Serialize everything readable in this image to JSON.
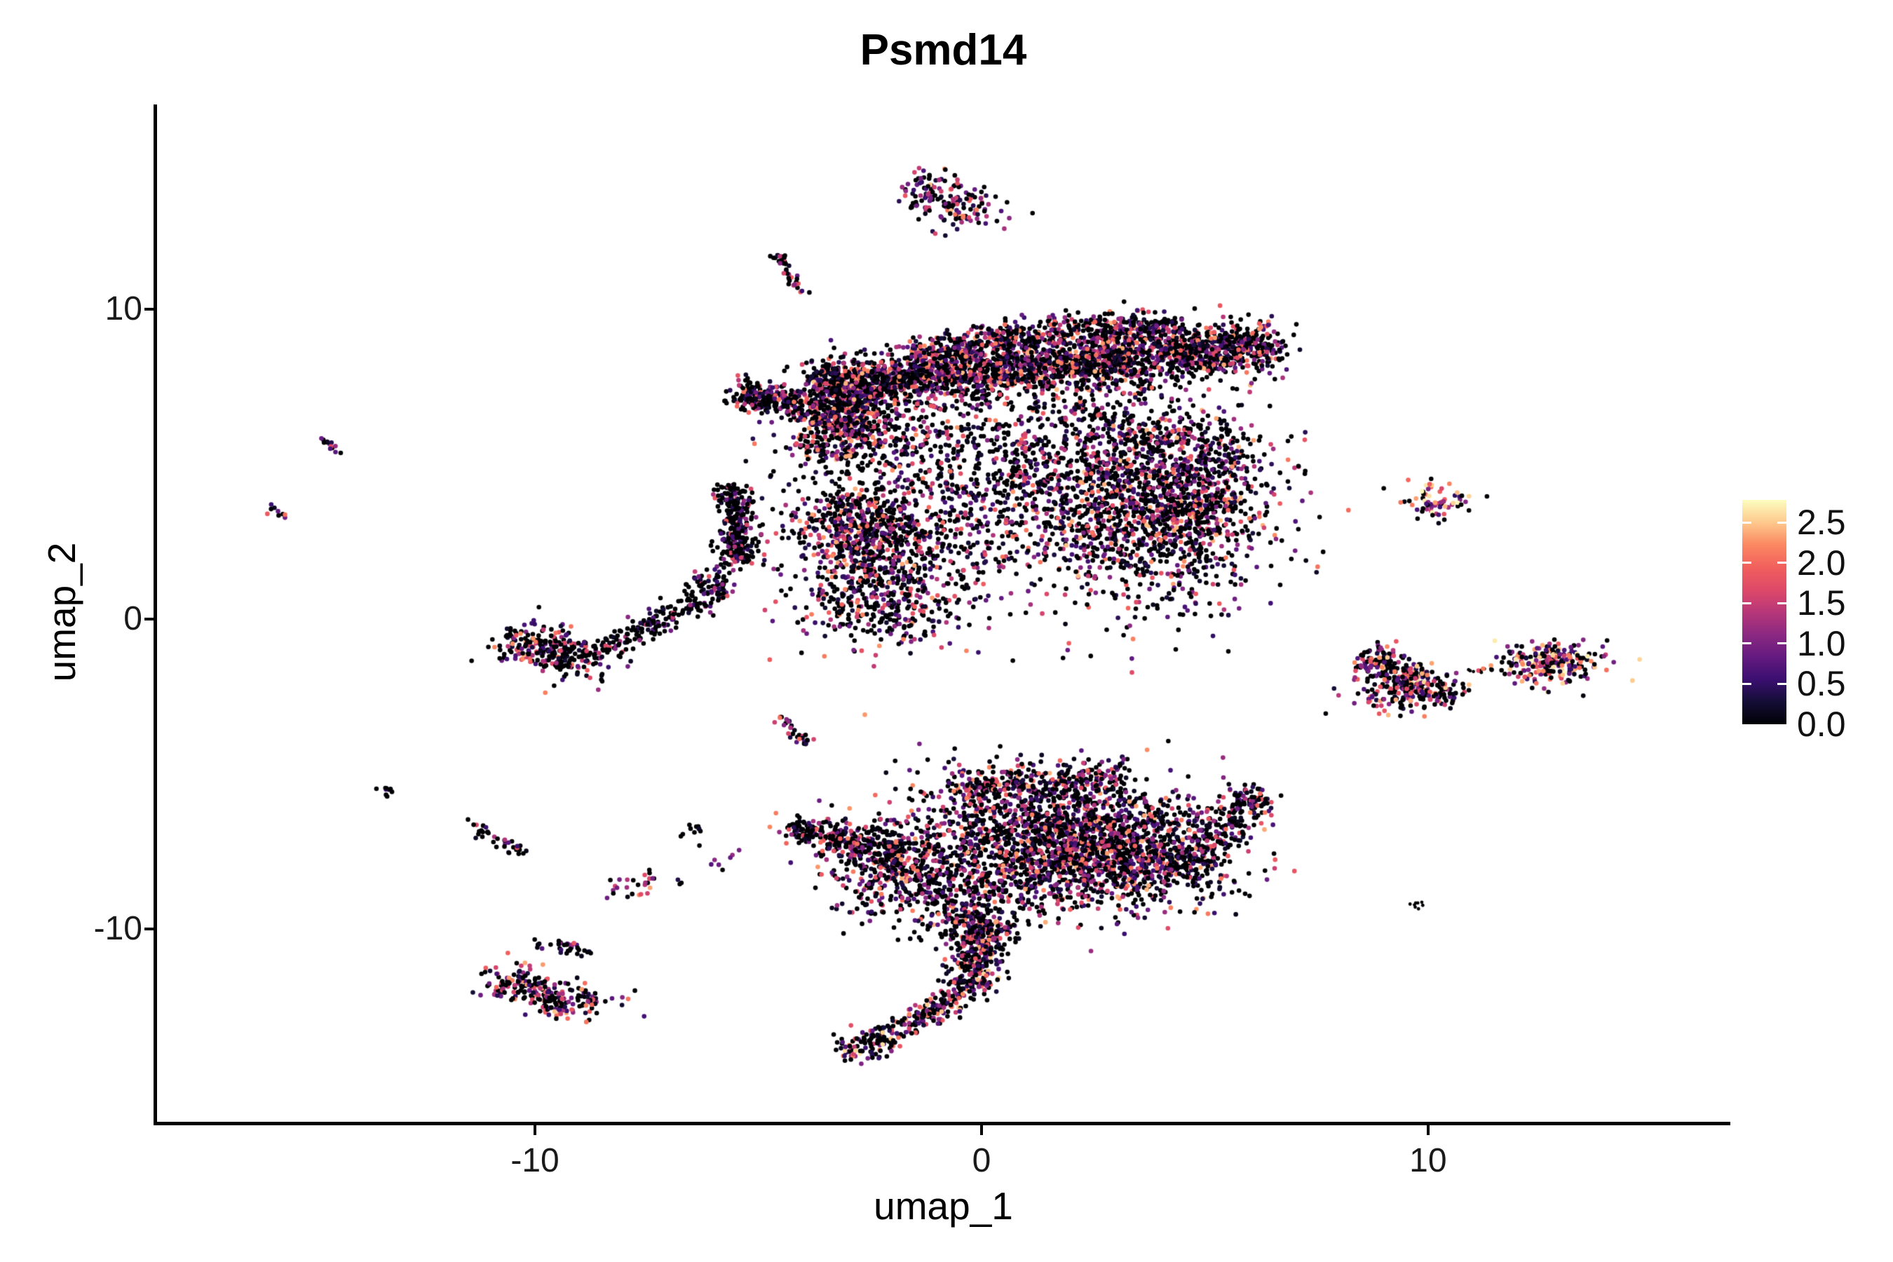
{
  "chart_data": {
    "type": "scatter",
    "title": "Psmd14",
    "xlabel": "umap_1",
    "ylabel": "umap_2",
    "xlim": [
      -18.48,
      16.77
    ],
    "ylim": [
      -16.27,
      16.61
    ],
    "x_ticks": [
      {
        "v": -10,
        "label": "-10"
      },
      {
        "v": 0,
        "label": "0"
      },
      {
        "v": 10,
        "label": "10"
      }
    ],
    "y_ticks": [
      {
        "v": 10,
        "label": "10"
      },
      {
        "v": 0,
        "label": "0"
      },
      {
        "v": -10,
        "label": "-10"
      }
    ],
    "grid": false,
    "legend_position": "right",
    "point_radius_px": 3.3,
    "color_scale": {
      "palette": "magma",
      "vmin": 0.0,
      "vmax": 2.78,
      "tick_values": [
        2.5,
        2.0,
        1.5,
        1.0,
        0.5,
        0.0
      ],
      "tick_labels": [
        "2.5",
        "2.0",
        "1.5",
        "1.0",
        "0.5",
        "0.0"
      ],
      "stops": [
        {
          "t": 0.0,
          "color": "#000004"
        },
        {
          "t": 0.1,
          "color": "#140e36"
        },
        {
          "t": 0.2,
          "color": "#3b0f70"
        },
        {
          "t": 0.3,
          "color": "#641a80"
        },
        {
          "t": 0.4,
          "color": "#8c2981"
        },
        {
          "t": 0.5,
          "color": "#b73779"
        },
        {
          "t": 0.6,
          "color": "#de4968"
        },
        {
          "t": 0.7,
          "color": "#f1605d"
        },
        {
          "t": 0.8,
          "color": "#fb8861"
        },
        {
          "t": 0.9,
          "color": "#fec98d"
        },
        {
          "t": 1.0,
          "color": "#fcfdbf"
        }
      ]
    },
    "e_default": {
      "p0": 0.42,
      "vmax": 2.35,
      "k": 1.7
    },
    "clusters": [
      {
        "name": "top-island-a",
        "shape": "gauss",
        "c": [
          -1.05,
          13.75
        ],
        "s": [
          0.45,
          0.38
        ],
        "n": 85,
        "e": {
          "p0": 0.36,
          "vmax": 2.5,
          "k": 1.3
        }
      },
      {
        "name": "top-island-b",
        "shape": "gauss",
        "c": [
          -0.3,
          13.3
        ],
        "s": [
          0.5,
          0.33
        ],
        "n": 75,
        "e": {
          "p0": 0.36,
          "vmax": 2.5,
          "k": 1.3
        }
      },
      {
        "name": "top-island-stray",
        "shape": "gauss",
        "c": [
          -0.7,
          12.6
        ],
        "s": [
          0.3,
          0.25
        ],
        "n": 6,
        "e": {
          "p0": 0.5,
          "vmax": 2.0,
          "k": 1.6
        }
      },
      {
        "name": "streak-topleft",
        "shape": "band",
        "p": [
          [
            -4.65,
            11.95
          ],
          [
            -4.0,
            10.45
          ]
        ],
        "w": 0.09,
        "n": 42,
        "e": {
          "p0": 0.5,
          "vmax": 2.2,
          "k": 1.5
        }
      },
      {
        "name": "band-main",
        "shape": "band",
        "p": [
          [
            -3.7,
            7.45
          ],
          [
            6.55,
            8.85
          ]
        ],
        "w": 0.42,
        "n": 2500,
        "e": {
          "p0": 0.4,
          "vmax": 2.45,
          "k": 1.55
        }
      },
      {
        "name": "band-upper",
        "shape": "band",
        "p": [
          [
            0.3,
            9.0
          ],
          [
            4.3,
            9.55
          ]
        ],
        "w": 0.3,
        "n": 430,
        "e": {
          "p0": 0.4,
          "vmax": 2.45,
          "k": 1.55
        }
      },
      {
        "name": "band-upper-left",
        "shape": "band",
        "p": [
          [
            -1.5,
            8.5
          ],
          [
            0.5,
            9.1
          ]
        ],
        "w": 0.25,
        "n": 200,
        "e": {
          "p0": 0.4,
          "vmax": 2.45,
          "k": 1.55
        }
      },
      {
        "name": "knot-left",
        "shape": "gauss",
        "c": [
          -3.25,
          6.55
        ],
        "s": [
          0.55,
          0.75
        ],
        "n": 650,
        "e": {
          "p0": 0.36,
          "vmax": 2.5,
          "k": 1.45
        }
      },
      {
        "name": "left-extension",
        "shape": "band",
        "p": [
          [
            -5.5,
            7.3
          ],
          [
            -4.2,
            6.9
          ]
        ],
        "w": 0.28,
        "n": 200,
        "e": {
          "p0": 0.45,
          "vmax": 2.3,
          "k": 1.6
        }
      },
      {
        "name": "sparse-mid-a",
        "shape": "gauss",
        "c": [
          -1.6,
          5.9
        ],
        "s": [
          1.5,
          0.95
        ],
        "n": 300,
        "e": {
          "p0": 0.46,
          "vmax": 2.3,
          "k": 1.7
        }
      },
      {
        "name": "sparse-mid-b",
        "shape": "gauss",
        "c": [
          1.3,
          4.9
        ],
        "s": [
          1.5,
          1.2
        ],
        "n": 380,
        "e": {
          "p0": 0.46,
          "vmax": 2.3,
          "k": 1.7
        }
      },
      {
        "name": "sparse-mid-c",
        "shape": "gauss",
        "c": [
          3.1,
          6.2
        ],
        "s": [
          1.2,
          0.95
        ],
        "n": 280,
        "e": {
          "p0": 0.46,
          "vmax": 2.3,
          "k": 1.7
        }
      },
      {
        "name": "sparse-mid-d",
        "shape": "gauss",
        "c": [
          -0.6,
          3.1
        ],
        "s": [
          1.3,
          1.0
        ],
        "n": 320,
        "e": {
          "p0": 0.46,
          "vmax": 2.3,
          "k": 1.7
        }
      },
      {
        "name": "right-lobe",
        "shape": "gauss",
        "c": [
          3.5,
          3.5
        ],
        "s": [
          1.5,
          1.55
        ],
        "n": 1250,
        "e": {
          "p0": 0.4,
          "vmax": 2.5,
          "k": 1.45
        }
      },
      {
        "name": "right-lobe-edge",
        "shape": "gauss",
        "c": [
          4.9,
          4.2
        ],
        "s": [
          0.75,
          1.3
        ],
        "n": 480,
        "e": {
          "p0": 0.4,
          "vmax": 2.5,
          "k": 1.45
        }
      },
      {
        "name": "bottom-knot",
        "shape": "gauss",
        "c": [
          -2.7,
          2.9
        ],
        "s": [
          0.8,
          0.75
        ],
        "n": 560,
        "e": {
          "p0": 0.42,
          "vmax": 2.4,
          "k": 1.5
        }
      },
      {
        "name": "below-knot",
        "shape": "gauss",
        "c": [
          -2.2,
          0.85
        ],
        "s": [
          1.05,
          0.85
        ],
        "n": 480,
        "e": {
          "p0": 0.42,
          "vmax": 2.4,
          "k": 1.5
        }
      },
      {
        "name": "vertical-arm",
        "shape": "band",
        "p": [
          [
            -5.5,
            4.3
          ],
          [
            -5.45,
            1.7
          ]
        ],
        "w": 0.22,
        "n": 300,
        "e": {
          "p0": 0.55,
          "vmax": 2.0,
          "k": 2.0
        }
      },
      {
        "name": "arm-elbow",
        "shape": "gauss",
        "c": [
          -6.0,
          1.0
        ],
        "s": [
          0.3,
          0.35
        ],
        "n": 80,
        "e": {
          "p0": 0.55,
          "vmax": 2.0,
          "k": 2.0
        }
      },
      {
        "name": "arm-trail",
        "shape": "band",
        "p": [
          [
            -6.3,
            0.6
          ],
          [
            -8.55,
            -1.05
          ]
        ],
        "w": 0.18,
        "n": 150,
        "e": {
          "p0": 0.6,
          "vmax": 1.8,
          "k": 2.0
        }
      },
      {
        "name": "left-cluster-a",
        "shape": "gauss",
        "c": [
          -9.95,
          -0.8
        ],
        "s": [
          0.5,
          0.33
        ],
        "n": 140,
        "e": {
          "p0": 0.48,
          "vmax": 2.4,
          "k": 1.5
        }
      },
      {
        "name": "left-cluster-b",
        "shape": "gauss",
        "c": [
          -9.25,
          -1.3
        ],
        "s": [
          0.55,
          0.33
        ],
        "n": 150,
        "e": {
          "p0": 0.48,
          "vmax": 2.4,
          "k": 1.5
        }
      },
      {
        "name": "islet-s1",
        "shape": "band",
        "p": [
          [
            -14.9,
            5.9
          ],
          [
            -14.4,
            5.3
          ]
        ],
        "w": 0.08,
        "n": 13,
        "e": {
          "p0": 0.35,
          "vmax": 2.2,
          "k": 1.2
        }
      },
      {
        "name": "islet-s2",
        "shape": "gauss",
        "c": [
          -15.8,
          3.45
        ],
        "s": [
          0.17,
          0.12
        ],
        "rot": -35,
        "n": 9,
        "e": {
          "p0": 0.4,
          "vmax": 2.2,
          "k": 1.2
        }
      },
      {
        "name": "islet-s3",
        "shape": "gauss",
        "c": [
          -13.3,
          -5.5
        ],
        "s": [
          0.13,
          0.13
        ],
        "n": 9,
        "e": {
          "p0": 0.85,
          "vmax": 1.2,
          "k": 2.0
        }
      },
      {
        "name": "islet-s4",
        "shape": "band",
        "p": [
          [
            -11.5,
            -6.55
          ],
          [
            -10.25,
            -7.6
          ]
        ],
        "w": 0.1,
        "n": 36,
        "e": {
          "p0": 0.65,
          "vmax": 2.0,
          "k": 1.7
        }
      },
      {
        "name": "islet-s5",
        "shape": "gauss",
        "c": [
          -7.65,
          -8.6
        ],
        "s": [
          0.3,
          0.22
        ],
        "n": 26,
        "e": {
          "p0": 0.4,
          "vmax": 2.6,
          "k": 1.1
        }
      },
      {
        "name": "islet-s5-stray",
        "shape": "gauss",
        "c": [
          -6.8,
          -8.5
        ],
        "s": [
          0.08,
          0.08
        ],
        "n": 3,
        "e": {
          "p0": 0.7,
          "vmax": 1.2,
          "k": 2.0
        }
      },
      {
        "name": "islet-s6a",
        "shape": "gauss",
        "c": [
          -6.45,
          -6.85
        ],
        "s": [
          0.15,
          0.2
        ],
        "n": 11,
        "e": {
          "p0": 0.8,
          "vmax": 1.4,
          "k": 2.0
        }
      },
      {
        "name": "islet-s6b",
        "shape": "gauss",
        "c": [
          -5.75,
          -7.85
        ],
        "s": [
          0.22,
          0.18
        ],
        "n": 7,
        "e": {
          "p0": 0.15,
          "vmax": 1.3,
          "k": 0.7
        }
      },
      {
        "name": "streak-s7",
        "shape": "band",
        "p": [
          [
            -4.55,
            -3.1
          ],
          [
            -3.9,
            -4.0
          ]
        ],
        "w": 0.08,
        "n": 30,
        "e": {
          "p0": 0.45,
          "vmax": 2.2,
          "k": 1.4
        }
      },
      {
        "name": "islet-s8",
        "shape": "gauss",
        "c": [
          9.7,
          -9.2
        ],
        "s": [
          0.14,
          0.1
        ],
        "n": 8,
        "r": 2.4,
        "e": {
          "p0": 0.85,
          "vmax": 1.0,
          "k": 2.0
        }
      },
      {
        "name": "right-band-r1",
        "shape": "band",
        "p": [
          [
            8.55,
            -1.15
          ],
          [
            10.5,
            -2.55
          ]
        ],
        "w": 0.3,
        "n": 300,
        "e": {
          "p0": 0.4,
          "vmax": 2.6,
          "k": 1.2
        }
      },
      {
        "name": "right-band-r1b",
        "shape": "gauss",
        "c": [
          9.2,
          -2.4
        ],
        "s": [
          0.5,
          0.3
        ],
        "n": 80,
        "e": {
          "p0": 0.4,
          "vmax": 2.6,
          "k": 1.2
        }
      },
      {
        "name": "right-trail",
        "shape": "band",
        "p": [
          [
            10.7,
            -1.6
          ],
          [
            11.6,
            -1.7
          ]
        ],
        "w": 0.05,
        "n": 7,
        "r": 2.4,
        "e": {
          "p0": 0.95,
          "vmax": 1.0,
          "k": 2.0
        }
      },
      {
        "name": "right-blob-r2",
        "shape": "gauss",
        "c": [
          12.7,
          -1.4
        ],
        "s": [
          0.6,
          0.32
        ],
        "n": 240,
        "e": {
          "p0": 0.33,
          "vmax": 2.78,
          "k": 1.0
        }
      },
      {
        "name": "topright-small",
        "shape": "gauss",
        "c": [
          10.15,
          3.8
        ],
        "s": [
          0.38,
          0.3
        ],
        "n": 70,
        "e": {
          "p0": 0.32,
          "vmax": 2.78,
          "k": 0.9
        }
      },
      {
        "name": "bottom-main",
        "shape": "gauss",
        "c": [
          1.5,
          -7.0
        ],
        "s": [
          1.6,
          1.05
        ],
        "n": 1700,
        "e": {
          "p0": 0.4,
          "vmax": 2.45,
          "k": 1.5
        }
      },
      {
        "name": "bottom-main2",
        "shape": "gauss",
        "c": [
          3.4,
          -7.7
        ],
        "s": [
          1.25,
          0.85
        ],
        "n": 750,
        "e": {
          "p0": 0.4,
          "vmax": 2.45,
          "k": 1.5
        }
      },
      {
        "name": "bottom-top-edge",
        "shape": "band",
        "p": [
          [
            -0.6,
            -5.45
          ],
          [
            3.0,
            -5.1
          ]
        ],
        "w": 0.25,
        "n": 260,
        "e": {
          "p0": 0.42,
          "vmax": 2.4,
          "k": 1.5
        }
      },
      {
        "name": "bottom-right-tip",
        "shape": "band",
        "p": [
          [
            4.6,
            -8.1
          ],
          [
            6.15,
            -5.75
          ]
        ],
        "w": 0.28,
        "n": 170,
        "e": {
          "p0": 0.45,
          "vmax": 2.3,
          "k": 1.6
        }
      },
      {
        "name": "bottom-tip-clump",
        "shape": "gauss",
        "c": [
          6.0,
          -5.8
        ],
        "s": [
          0.22,
          0.22
        ],
        "n": 45,
        "e": {
          "p0": 0.45,
          "vmax": 2.3,
          "k": 1.6
        }
      },
      {
        "name": "left-wing1",
        "shape": "gauss",
        "c": [
          -3.3,
          -7.0
        ],
        "s": [
          0.55,
          0.3
        ],
        "rot": -15,
        "n": 150,
        "e": {
          "p0": 0.45,
          "vmax": 2.3,
          "k": 1.5
        }
      },
      {
        "name": "left-wing2",
        "shape": "gauss",
        "c": [
          -2.1,
          -7.5
        ],
        "s": [
          0.75,
          0.5
        ],
        "n": 280,
        "e": {
          "p0": 0.45,
          "vmax": 2.3,
          "k": 1.5
        }
      },
      {
        "name": "wing-tip",
        "shape": "gauss",
        "c": [
          -4.05,
          -6.8
        ],
        "s": [
          0.22,
          0.16
        ],
        "n": 40,
        "e": {
          "p0": 0.55,
          "vmax": 2.0,
          "k": 1.8
        }
      },
      {
        "name": "bottom-lower-left",
        "shape": "gauss",
        "c": [
          -1.6,
          -8.6
        ],
        "s": [
          0.85,
          0.6
        ],
        "n": 280,
        "e": {
          "p0": 0.44,
          "vmax": 2.35,
          "k": 1.6
        }
      },
      {
        "name": "bottom-neck",
        "shape": "gauss",
        "c": [
          -0.1,
          -9.6
        ],
        "s": [
          0.6,
          0.5
        ],
        "n": 220,
        "e": {
          "p0": 0.44,
          "vmax": 2.4,
          "k": 1.5
        }
      },
      {
        "name": "tail-vertical",
        "shape": "band",
        "p": [
          [
            0.05,
            -9.9
          ],
          [
            -0.25,
            -12.0
          ]
        ],
        "w": 0.3,
        "n": 330,
        "e": {
          "p0": 0.42,
          "vmax": 2.6,
          "k": 1.4
        }
      },
      {
        "name": "tail-diagonal",
        "shape": "band",
        "p": [
          [
            -0.5,
            -12.2
          ],
          [
            -2.5,
            -13.8
          ]
        ],
        "w": 0.2,
        "n": 200,
        "e": {
          "p0": 0.45,
          "vmax": 2.7,
          "k": 1.2
        }
      },
      {
        "name": "tail-tip",
        "shape": "gauss",
        "c": [
          -2.8,
          -13.9
        ],
        "s": [
          0.25,
          0.28
        ],
        "n": 55,
        "e": {
          "p0": 0.45,
          "vmax": 2.7,
          "k": 1.2
        }
      },
      {
        "name": "bottomleft-arc1",
        "shape": "gauss",
        "c": [
          -10.3,
          -11.75
        ],
        "s": [
          0.42,
          0.3
        ],
        "rot": -20,
        "n": 110,
        "e": {
          "p0": 0.42,
          "vmax": 2.5,
          "k": 1.3
        }
      },
      {
        "name": "bottomleft-arc2",
        "shape": "gauss",
        "c": [
          -9.3,
          -12.3
        ],
        "s": [
          0.55,
          0.3
        ],
        "rot": -10,
        "n": 130,
        "e": {
          "p0": 0.42,
          "vmax": 2.5,
          "k": 1.3
        }
      },
      {
        "name": "bottomleft-upper",
        "shape": "band",
        "p": [
          [
            -9.55,
            -10.45
          ],
          [
            -8.75,
            -10.8
          ]
        ],
        "w": 0.12,
        "n": 28,
        "e": {
          "p0": 0.5,
          "vmax": 2.2,
          "k": 1.5
        }
      },
      {
        "name": "bottomleft-dots",
        "shape": "gauss",
        "c": [
          -9.95,
          -10.5
        ],
        "s": [
          0.1,
          0.2
        ],
        "n": 6,
        "e": {
          "p0": 0.6,
          "vmax": 1.6,
          "k": 1.8
        }
      }
    ]
  }
}
